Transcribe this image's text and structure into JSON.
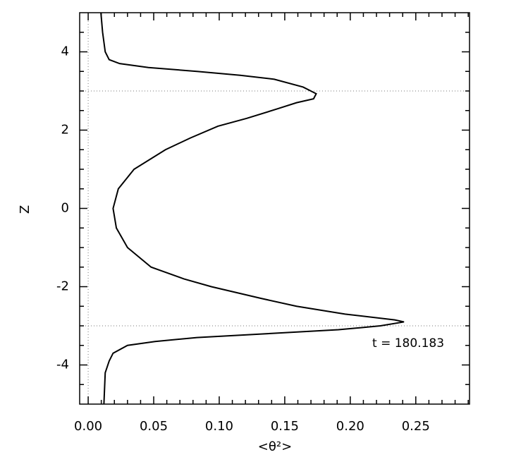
{
  "chart_data": {
    "type": "line",
    "xlabel": "<θ²>",
    "ylabel": "Z",
    "annotation": "t = 180.183",
    "xlim": [
      -0.0065,
      0.291
    ],
    "ylim": [
      -5,
      5
    ],
    "xticks": [
      {
        "value": 0,
        "label": "0.00"
      },
      {
        "value": 0.05,
        "label": "0.05"
      },
      {
        "value": 0.1,
        "label": "0.10"
      },
      {
        "value": 0.15,
        "label": "0.15"
      },
      {
        "value": 0.2,
        "label": "0.20"
      },
      {
        "value": 0.25,
        "label": "0.25"
      }
    ],
    "yticks": [
      -4,
      -2,
      0,
      2,
      4
    ],
    "xminorticks": [
      0.01,
      0.02,
      0.03,
      0.04,
      0.06,
      0.07,
      0.08,
      0.09,
      0.11,
      0.12,
      0.13,
      0.14,
      0.16,
      0.17,
      0.18,
      0.19,
      0.21,
      0.22,
      0.23,
      0.24,
      0.26,
      0.27,
      0.28,
      0.29
    ],
    "yminorticks": [
      -4.5,
      -3.5,
      -3,
      -2.5,
      -1.5,
      -1,
      -0.5,
      0.5,
      1,
      1.5,
      2.5,
      3,
      3.5,
      4.5
    ],
    "vlines": [
      0
    ],
    "hlines": [
      3,
      -3
    ],
    "series": [
      {
        "color": "#000000",
        "x": [
          0.0097,
          0.011,
          0.013,
          0.016,
          0.024,
          0.046,
          0.083,
          0.116,
          0.142,
          0.164,
          0.174,
          0.172,
          0.159,
          0.145,
          0.121,
          0.099,
          0.078,
          0.059,
          0.035,
          0.023,
          0.019,
          0.0215,
          0.03,
          0.048,
          0.073,
          0.094,
          0.132,
          0.159,
          0.196,
          0.234,
          0.241,
          0.223,
          0.191,
          0.137,
          0.083,
          0.051,
          0.03,
          0.019,
          0.016,
          0.013,
          0.012
        ],
        "y": [
          5,
          4.5,
          4,
          3.8,
          3.7,
          3.6,
          3.5,
          3.4,
          3.3,
          3.1,
          2.93,
          2.8,
          2.7,
          2.55,
          2.3,
          2.1,
          1.8,
          1.5,
          1.0,
          0.5,
          0,
          -0.5,
          -1.0,
          -1.5,
          -1.8,
          -2.0,
          -2.3,
          -2.5,
          -2.7,
          -2.85,
          -2.9,
          -3.0,
          -3.1,
          -3.2,
          -3.3,
          -3.4,
          -3.5,
          -3.7,
          -3.9,
          -4.2,
          -5
        ]
      }
    ]
  }
}
